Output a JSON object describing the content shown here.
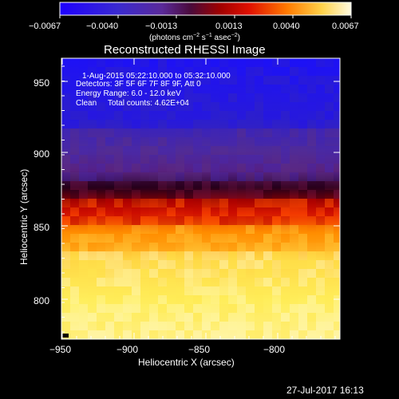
{
  "colorbar": {
    "ticks": [
      "−0.0067",
      "−0.0040",
      "−0.0013",
      "0.0013",
      "0.0040",
      "0.0067"
    ],
    "units_prefix": "(photons cm",
    "units_exp1": "−2",
    "units_mid": " s",
    "units_exp2": "−1",
    "units_mid2": " asec",
    "units_exp3": "−2",
    "units_suffix": ")",
    "stops": [
      "#1e00ff",
      "#2a1fd6",
      "#5a2a9a",
      "#6a0f4f",
      "#9a0000",
      "#e00000",
      "#ff7a00",
      "#ffd24a",
      "#fff8d0"
    ]
  },
  "image": {
    "title": "Reconstructed RHESSI Image",
    "info_lines": [
      "1-Aug-2015 05:22:10.000 to 05:32:10.000",
      "Detectors: 3F 5F 6F 7F 8F 9F, Att 0",
      "Energy Range: 6.0 - 12.0 keV",
      "Clean     Total counts: 4.62E+04"
    ],
    "xlabel": "Heliocentric X (arcsec)",
    "ylabel": "Heliocentric Y (arcsec)",
    "xticks": [
      "−950",
      "−900",
      "−850",
      "−800"
    ],
    "yticks": [
      "950",
      "900",
      "850",
      "800"
    ],
    "timestamp": "27-Jul-2017 16:13"
  }
}
